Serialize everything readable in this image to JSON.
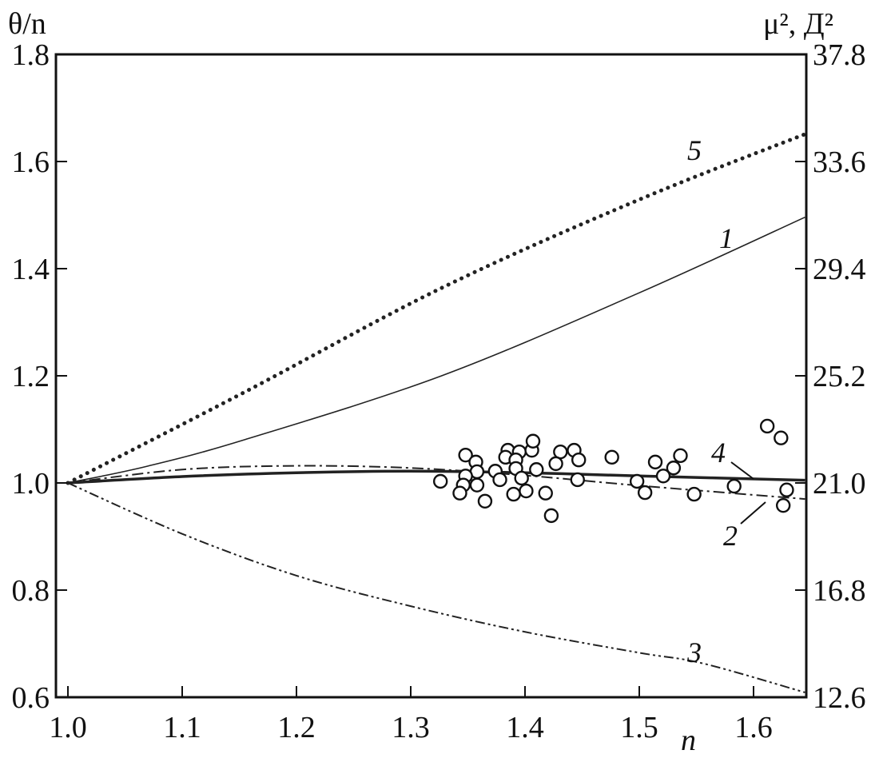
{
  "chart_data": {
    "type": "line",
    "title": "",
    "xlabel": "n",
    "ylabel": "θ/n",
    "ylabel_right": "μ², Д²",
    "xlim": [
      0.99,
      1.65
    ],
    "ylim": [
      0.6,
      1.8
    ],
    "ylim_right": [
      12.6,
      37.8
    ],
    "grid": false,
    "x_ticks": [
      "1.0",
      "1.1",
      "1.2",
      "1.3",
      "1.4",
      "1.5",
      "1.6"
    ],
    "x_tick_values": [
      1.0,
      1.1,
      1.2,
      1.3,
      1.4,
      1.5,
      1.6
    ],
    "y_ticks": [
      "0.6",
      "0.8",
      "1.0",
      "1.2",
      "1.4",
      "1.6",
      "1.8"
    ],
    "y_tick_values": [
      0.6,
      0.8,
      1.0,
      1.2,
      1.4,
      1.6,
      1.8
    ],
    "y_ticks_right": [
      "12.6",
      "16.8",
      "21.0",
      "25.2",
      "29.4",
      "33.6",
      "37.8"
    ],
    "series": [
      {
        "name": "5",
        "style": "dotted",
        "x": [
          1.0,
          1.155,
          1.327,
          1.499,
          1.645
        ],
        "y": [
          1.0,
          1.17,
          1.364,
          1.528,
          1.651
        ]
      },
      {
        "name": "1",
        "style": "solid-thin",
        "x": [
          1.0,
          1.069,
          1.155,
          1.327,
          1.499,
          1.645
        ],
        "y": [
          1.0,
          1.031,
          1.081,
          1.2,
          1.354,
          1.496
        ]
      },
      {
        "name": "4",
        "style": "solid-thick",
        "x": [
          1.0,
          1.1,
          1.2,
          1.3,
          1.4,
          1.5,
          1.645
        ],
        "y": [
          1.0,
          1.012,
          1.019,
          1.022,
          1.019,
          1.013,
          1.005
        ]
      },
      {
        "name": "2",
        "style": "dash-dot",
        "x": [
          1.0,
          1.1,
          1.2,
          1.3,
          1.4,
          1.5,
          1.645
        ],
        "y": [
          1.0,
          1.025,
          1.032,
          1.028,
          1.014,
          0.995,
          0.97
        ]
      },
      {
        "name": "3",
        "style": "dash-dot-dot",
        "x": [
          1.0,
          1.1,
          1.2,
          1.3,
          1.4,
          1.5,
          1.556,
          1.645
        ],
        "y": [
          1.0,
          0.905,
          0.827,
          0.77,
          0.722,
          0.683,
          0.663,
          0.609
        ]
      }
    ],
    "scatter": {
      "x": [
        1.326,
        1.348,
        1.357,
        1.358,
        1.348,
        1.346,
        1.358,
        1.343,
        1.365,
        1.374,
        1.378,
        1.385,
        1.383,
        1.395,
        1.392,
        1.392,
        1.397,
        1.39,
        1.401,
        1.406,
        1.407,
        1.41,
        1.418,
        1.423,
        1.431,
        1.427,
        1.443,
        1.447,
        1.446,
        1.476,
        1.498,
        1.505,
        1.514,
        1.521,
        1.53,
        1.536,
        1.548,
        1.583,
        1.612,
        1.624,
        1.629,
        1.626
      ],
      "y": [
        1.003,
        1.052,
        1.039,
        1.021,
        1.013,
        0.996,
        0.996,
        0.981,
        0.966,
        1.022,
        1.006,
        1.061,
        1.048,
        1.058,
        1.043,
        1.027,
        1.009,
        0.979,
        0.985,
        1.061,
        1.078,
        1.025,
        0.981,
        0.939,
        1.058,
        1.036,
        1.061,
        1.043,
        1.006,
        1.048,
        1.003,
        0.982,
        1.039,
        1.013,
        1.028,
        1.051,
        0.979,
        0.994,
        1.106,
        1.084,
        0.987,
        0.958
      ],
      "marker": "open-circle"
    }
  }
}
